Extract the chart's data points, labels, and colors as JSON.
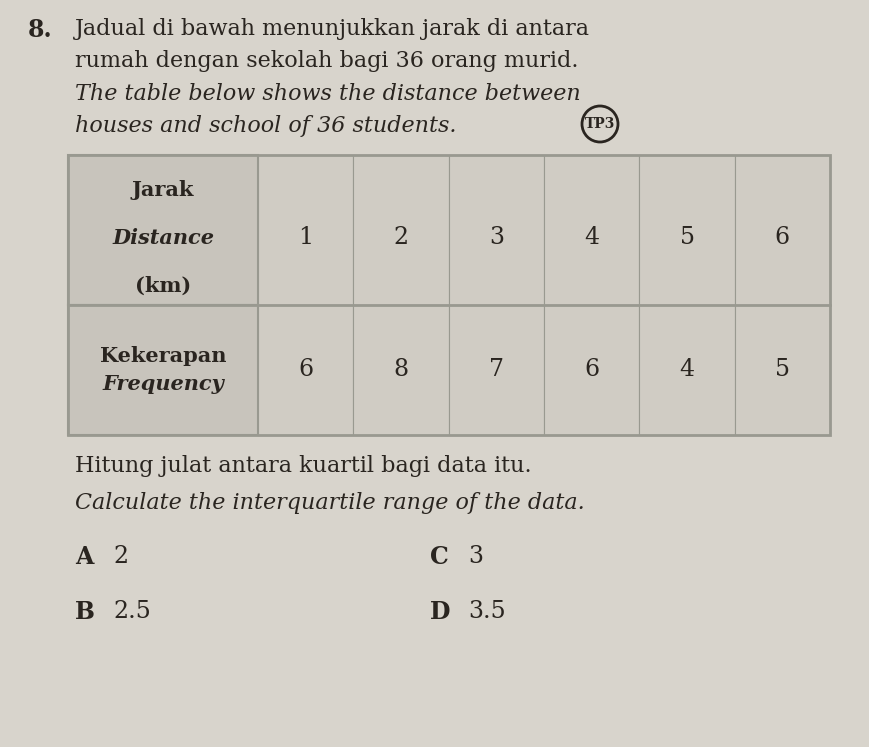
{
  "question_number": "8.",
  "text_line1": "Jadual di bawah menunjukkan jarak di antara",
  "text_line2": "rumah dengan sekolah bagi 36 orang murid.",
  "text_line3_italic": "The table below shows the distance between",
  "text_line4_italic": "houses and school of 36 students.",
  "tp3_label": "TP3",
  "header_row1_line1": "Jarak",
  "header_row1_line2": "Distance",
  "header_row1_line3": "(km)",
  "distance_values": [
    1,
    2,
    3,
    4,
    5,
    6
  ],
  "header_row2_line1": "Kekerapan",
  "header_row2_line2": "Frequency",
  "frequency_values": [
    6,
    8,
    7,
    6,
    4,
    5
  ],
  "question_line1": "Hitung julat antara kuartil bagi data itu.",
  "question_line2_italic": "Calculate the interquartile range of the data.",
  "options": [
    {
      "letter": "A",
      "value": "2"
    },
    {
      "letter": "B",
      "value": "2.5"
    },
    {
      "letter": "C",
      "value": "3"
    },
    {
      "letter": "D",
      "value": "3.5"
    }
  ],
  "bg_color": "#d8d4cc",
  "table_header_bg": "#c8c4bc",
  "table_cell_bg": "#d0ccc4",
  "table_border_color": "#999990",
  "text_color": "#2a2520"
}
